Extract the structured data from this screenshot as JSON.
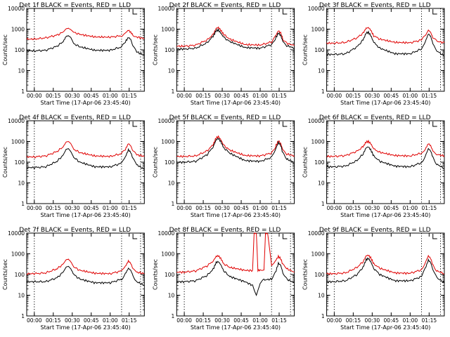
{
  "colors": {
    "events": "#000000",
    "lld": "#e00000",
    "axes": "#000000",
    "bg": "#ffffff"
  },
  "chart_data": [
    {
      "type": "line",
      "title": "Det 1f BLACK = Events, RED = LLD",
      "xlabel": "Start Time (17-Apr-06 23:45:40)",
      "ylabel": "Counts/sec",
      "yscale": "log",
      "ylim": [
        1,
        10000
      ],
      "ytick_labels": [
        "1",
        "10",
        "100",
        "1000",
        "10000"
      ],
      "xlim": [
        -0.1,
        1.45
      ],
      "xtick_labels": [
        "00:00",
        "00:15",
        "00:30",
        "00:45",
        "01:00",
        "01:15"
      ],
      "series": [
        {
          "name": "BLACK = Events",
          "color": "#000000",
          "x": [
            -0.1,
            0.0,
            0.15,
            0.3,
            0.38,
            0.42,
            0.45,
            0.48,
            0.52,
            0.6,
            0.8,
            1.0,
            1.15,
            1.2,
            1.24,
            1.27,
            1.3,
            1.35,
            1.45
          ],
          "y": [
            90,
            90,
            95,
            150,
            250,
            450,
            480,
            400,
            200,
            140,
            95,
            95,
            140,
            250,
            400,
            320,
            150,
            80,
            55
          ]
        },
        {
          "name": "RED = LLD",
          "color": "#e00000",
          "x": [
            -0.1,
            0.0,
            0.15,
            0.3,
            0.38,
            0.42,
            0.45,
            0.48,
            0.52,
            0.6,
            0.8,
            1.0,
            1.15,
            1.2,
            1.24,
            1.27,
            1.3,
            1.35,
            1.45
          ],
          "y": [
            330,
            330,
            380,
            520,
            720,
            1050,
            1100,
            950,
            700,
            560,
            420,
            410,
            480,
            650,
            900,
            700,
            520,
            420,
            350
          ]
        }
      ]
    },
    {
      "type": "line",
      "title": "Det 2f BLACK = Events, RED = LLD",
      "xlabel": "Start Time (17-Apr-06 23:45:40)",
      "ylabel": "Counts/sec",
      "yscale": "log",
      "ylim": [
        1,
        10000
      ],
      "ytick_labels": [
        "1",
        "10",
        "100",
        "1000",
        "10000"
      ],
      "xlim": [
        -0.1,
        1.45
      ],
      "xtick_labels": [
        "00:00",
        "00:15",
        "00:30",
        "00:45",
        "01:00",
        "01:15"
      ],
      "series": [
        {
          "name": "BLACK = Events",
          "color": "#000000",
          "x": [
            -0.1,
            0.0,
            0.15,
            0.3,
            0.38,
            0.42,
            0.45,
            0.48,
            0.52,
            0.6,
            0.8,
            1.0,
            1.15,
            1.2,
            1.24,
            1.27,
            1.3,
            1.35,
            1.45
          ],
          "y": [
            110,
            110,
            120,
            220,
            450,
            850,
            900,
            650,
            400,
            250,
            130,
            120,
            180,
            350,
            650,
            500,
            250,
            160,
            120
          ]
        },
        {
          "name": "RED = LLD",
          "color": "#e00000",
          "x": [
            -0.1,
            0.0,
            0.15,
            0.3,
            0.38,
            0.42,
            0.45,
            0.48,
            0.52,
            0.6,
            0.8,
            1.0,
            1.15,
            1.2,
            1.24,
            1.27,
            1.3,
            1.35,
            1.45
          ],
          "y": [
            150,
            150,
            170,
            300,
            550,
            1100,
            1200,
            900,
            550,
            330,
            180,
            170,
            240,
            450,
            850,
            650,
            330,
            210,
            160
          ]
        }
      ]
    },
    {
      "type": "line",
      "title": "Det 3f BLACK = Events, RED = LLD",
      "xlabel": "Start Time (17-Apr-06 23:45:40)",
      "ylabel": "Counts/sec",
      "yscale": "log",
      "ylim": [
        1,
        10000
      ],
      "ytick_labels": [
        "1",
        "10",
        "100",
        "1000",
        "10000"
      ],
      "xlim": [
        -0.1,
        1.45
      ],
      "xtick_labels": [
        "00:00",
        "00:15",
        "00:30",
        "00:45",
        "01:00",
        "01:15"
      ],
      "series": [
        {
          "name": "BLACK = Events",
          "color": "#000000",
          "x": [
            -0.1,
            0.0,
            0.15,
            0.3,
            0.38,
            0.42,
            0.45,
            0.48,
            0.52,
            0.6,
            0.8,
            1.0,
            1.15,
            1.2,
            1.24,
            1.27,
            1.3,
            1.35,
            1.45
          ],
          "y": [
            60,
            60,
            65,
            140,
            300,
            650,
            700,
            500,
            230,
            120,
            65,
            65,
            110,
            250,
            600,
            450,
            200,
            90,
            50
          ]
        },
        {
          "name": "RED = LLD",
          "color": "#e00000",
          "x": [
            -0.1,
            0.0,
            0.15,
            0.3,
            0.38,
            0.42,
            0.45,
            0.48,
            0.52,
            0.6,
            0.8,
            1.0,
            1.15,
            1.2,
            1.24,
            1.27,
            1.3,
            1.35,
            1.45
          ],
          "y": [
            210,
            210,
            230,
            380,
            650,
            1100,
            1200,
            900,
            480,
            330,
            230,
            220,
            300,
            480,
            900,
            700,
            380,
            260,
            220
          ]
        }
      ]
    },
    {
      "type": "line",
      "title": "Det 4f BLACK = Events, RED = LLD",
      "xlabel": "Start Time (17-Apr-06 23:45:40)",
      "ylabel": "Counts/sec",
      "yscale": "log",
      "ylim": [
        1,
        10000
      ],
      "ytick_labels": [
        "1",
        "10",
        "100",
        "1000",
        "10000"
      ],
      "xlim": [
        -0.1,
        1.45
      ],
      "xtick_labels": [
        "00:00",
        "00:15",
        "00:30",
        "00:45",
        "01:00",
        "01:15"
      ],
      "series": [
        {
          "name": "BLACK = Events",
          "color": "#000000",
          "x": [
            -0.1,
            0.0,
            0.15,
            0.3,
            0.38,
            0.42,
            0.45,
            0.48,
            0.52,
            0.6,
            0.8,
            1.0,
            1.15,
            1.2,
            1.24,
            1.27,
            1.3,
            1.35,
            1.45
          ],
          "y": [
            55,
            55,
            60,
            110,
            220,
            420,
            450,
            330,
            170,
            100,
            60,
            60,
            90,
            180,
            400,
            300,
            150,
            75,
            45
          ]
        },
        {
          "name": "RED = LLD",
          "color": "#e00000",
          "x": [
            -0.1,
            0.0,
            0.15,
            0.3,
            0.38,
            0.42,
            0.45,
            0.48,
            0.52,
            0.6,
            0.8,
            1.0,
            1.15,
            1.2,
            1.24,
            1.27,
            1.3,
            1.35,
            1.45
          ],
          "y": [
            180,
            180,
            200,
            330,
            550,
            950,
            1000,
            800,
            420,
            290,
            200,
            190,
            260,
            420,
            800,
            620,
            340,
            230,
            190
          ]
        }
      ]
    },
    {
      "type": "line",
      "title": "Det 5f BLACK = Events, RED = LLD",
      "xlabel": "Start Time (17-Apr-06 23:45:40)",
      "ylabel": "Counts/sec",
      "yscale": "log",
      "ylim": [
        1,
        10000
      ],
      "ytick_labels": [
        "1",
        "10",
        "100",
        "1000",
        "10000"
      ],
      "xlim": [
        -0.1,
        1.45
      ],
      "xtick_labels": [
        "00:00",
        "00:15",
        "00:30",
        "00:45",
        "01:00",
        "01:15"
      ],
      "series": [
        {
          "name": "BLACK = Events",
          "color": "#000000",
          "x": [
            -0.1,
            0.0,
            0.15,
            0.3,
            0.38,
            0.42,
            0.45,
            0.48,
            0.52,
            0.6,
            0.8,
            1.0,
            1.15,
            1.2,
            1.24,
            1.27,
            1.3,
            1.35,
            1.45
          ],
          "y": [
            100,
            100,
            110,
            230,
            550,
            1200,
            1400,
            1000,
            500,
            270,
            120,
            110,
            170,
            400,
            900,
            650,
            270,
            140,
            100
          ]
        },
        {
          "name": "RED = LLD",
          "color": "#e00000",
          "x": [
            -0.1,
            0.0,
            0.15,
            0.3,
            0.38,
            0.42,
            0.45,
            0.48,
            0.52,
            0.6,
            0.8,
            1.0,
            1.15,
            1.2,
            1.24,
            1.27,
            1.3,
            1.35,
            1.45
          ],
          "y": [
            190,
            190,
            200,
            350,
            700,
            1500,
            1700,
            1250,
            650,
            380,
            210,
            200,
            280,
            550,
            1100,
            800,
            380,
            250,
            200
          ]
        }
      ]
    },
    {
      "type": "line",
      "title": "Det 6f BLACK = Events, RED = LLD",
      "xlabel": "Start Time (17-Apr-06 23:45:40)",
      "ylabel": "Counts/sec",
      "yscale": "log",
      "ylim": [
        1,
        10000
      ],
      "ytick_labels": [
        "1",
        "10",
        "100",
        "1000",
        "10000"
      ],
      "xlim": [
        -0.1,
        1.45
      ],
      "xtick_labels": [
        "00:00",
        "00:15",
        "00:30",
        "00:45",
        "01:00",
        "01:15"
      ],
      "series": [
        {
          "name": "BLACK = Events",
          "color": "#000000",
          "x": [
            -0.1,
            0.0,
            0.15,
            0.3,
            0.38,
            0.42,
            0.45,
            0.48,
            0.52,
            0.6,
            0.8,
            1.0,
            1.15,
            1.2,
            1.24,
            1.27,
            1.3,
            1.35,
            1.45
          ],
          "y": [
            60,
            60,
            65,
            120,
            250,
            500,
            550,
            400,
            200,
            110,
            65,
            60,
            95,
            200,
            450,
            350,
            170,
            80,
            50
          ]
        },
        {
          "name": "RED = LLD",
          "color": "#e00000",
          "x": [
            -0.1,
            0.0,
            0.15,
            0.3,
            0.38,
            0.42,
            0.45,
            0.48,
            0.52,
            0.6,
            0.8,
            1.0,
            1.15,
            1.2,
            1.24,
            1.27,
            1.3,
            1.35,
            1.45
          ],
          "y": [
            190,
            190,
            210,
            340,
            560,
            950,
            1000,
            800,
            430,
            300,
            210,
            200,
            270,
            430,
            800,
            620,
            350,
            240,
            200
          ]
        }
      ]
    },
    {
      "type": "line",
      "title": "Det 7f BLACK = Events, RED = LLD",
      "xlabel": "Start Time (17-Apr-06 23:45:40)",
      "ylabel": "Counts/sec",
      "yscale": "log",
      "ylim": [
        1,
        10000
      ],
      "ytick_labels": [
        "1",
        "10",
        "100",
        "1000",
        "10000"
      ],
      "xlim": [
        -0.1,
        1.45
      ],
      "xtick_labels": [
        "00:00",
        "00:15",
        "00:30",
        "00:45",
        "01:00",
        "01:15"
      ],
      "series": [
        {
          "name": "BLACK = Events",
          "color": "#000000",
          "x": [
            -0.1,
            0.0,
            0.15,
            0.3,
            0.38,
            0.42,
            0.45,
            0.48,
            0.52,
            0.6,
            0.8,
            1.0,
            1.15,
            1.2,
            1.24,
            1.27,
            1.3,
            1.35,
            1.45
          ],
          "y": [
            45,
            45,
            45,
            70,
            130,
            230,
            250,
            190,
            100,
            60,
            40,
            40,
            60,
            110,
            200,
            160,
            90,
            45,
            30
          ]
        },
        {
          "name": "RED = LLD",
          "color": "#e00000",
          "x": [
            -0.1,
            0.0,
            0.15,
            0.3,
            0.38,
            0.42,
            0.45,
            0.48,
            0.52,
            0.6,
            0.8,
            1.0,
            1.15,
            1.2,
            1.24,
            1.27,
            1.3,
            1.35,
            1.45
          ],
          "y": [
            110,
            110,
            120,
            190,
            320,
            520,
            550,
            420,
            230,
            160,
            115,
            110,
            150,
            250,
            450,
            350,
            190,
            130,
            110
          ]
        }
      ]
    },
    {
      "type": "line",
      "title": "Det 8f BLACK = Events, RED = LLD",
      "xlabel": "Start Time (17-Apr-06 23:45:40)",
      "ylabel": "Counts/sec",
      "yscale": "log",
      "ylim": [
        1,
        10000
      ],
      "ytick_labels": [
        "1",
        "10",
        "100",
        "1000",
        "10000"
      ],
      "xlim": [
        -0.1,
        1.45
      ],
      "xtick_labels": [
        "00:00",
        "00:15",
        "00:30",
        "00:45",
        "01:00",
        "01:15"
      ],
      "series": [
        {
          "name": "BLACK = Events",
          "color": "#000000",
          "x": [
            -0.1,
            0.0,
            0.15,
            0.3,
            0.38,
            0.42,
            0.45,
            0.48,
            0.52,
            0.6,
            0.8,
            0.9,
            0.95,
            1.0,
            1.05,
            1.15,
            1.2,
            1.24,
            1.27,
            1.3,
            1.35,
            1.45
          ],
          "y": [
            45,
            45,
            50,
            90,
            180,
            380,
            420,
            300,
            150,
            80,
            45,
            30,
            10,
            40,
            55,
            60,
            120,
            350,
            280,
            120,
            60,
            40
          ]
        },
        {
          "name": "RED = LLD",
          "color": "#e00000",
          "x": [
            -0.1,
            0.0,
            0.15,
            0.3,
            0.38,
            0.42,
            0.45,
            0.48,
            0.52,
            0.6,
            0.8,
            0.9,
            0.92,
            0.95,
            0.97,
            1.0,
            1.05,
            1.07,
            1.1,
            1.15,
            1.2,
            1.24,
            1.27,
            1.3,
            1.35,
            1.45
          ],
          "y": [
            130,
            130,
            150,
            260,
            450,
            750,
            800,
            600,
            330,
            220,
            160,
            155,
            10000,
            10000,
            160,
            160,
            160,
            10000,
            10000,
            250,
            450,
            750,
            580,
            300,
            190,
            130
          ]
        }
      ]
    },
    {
      "type": "line",
      "title": "Det 9f BLACK = Events, RED = LLD",
      "xlabel": "Start Time (17-Apr-06 23:45:40)",
      "ylabel": "Counts/sec",
      "yscale": "log",
      "ylim": [
        1,
        10000
      ],
      "ytick_labels": [
        "1",
        "10",
        "100",
        "1000",
        "10000"
      ],
      "xlim": [
        -0.1,
        1.45
      ],
      "xtick_labels": [
        "00:00",
        "00:15",
        "00:30",
        "00:45",
        "01:00",
        "01:15"
      ],
      "series": [
        {
          "name": "BLACK = Events",
          "color": "#000000",
          "x": [
            -0.1,
            0.0,
            0.15,
            0.3,
            0.38,
            0.42,
            0.45,
            0.48,
            0.52,
            0.6,
            0.8,
            1.0,
            1.15,
            1.2,
            1.24,
            1.27,
            1.3,
            1.35,
            1.45
          ],
          "y": [
            45,
            45,
            50,
            100,
            230,
            520,
            600,
            420,
            200,
            100,
            50,
            50,
            80,
            200,
            500,
            380,
            170,
            70,
            40
          ]
        },
        {
          "name": "RED = LLD",
          "color": "#e00000",
          "x": [
            -0.1,
            0.0,
            0.15,
            0.3,
            0.38,
            0.42,
            0.45,
            0.48,
            0.52,
            0.6,
            0.8,
            1.0,
            1.15,
            1.2,
            1.24,
            1.27,
            1.3,
            1.35,
            1.45
          ],
          "y": [
            110,
            110,
            120,
            220,
            420,
            800,
            850,
            650,
            330,
            200,
            120,
            115,
            170,
            380,
            800,
            600,
            280,
            150,
            110
          ]
        }
      ]
    }
  ]
}
